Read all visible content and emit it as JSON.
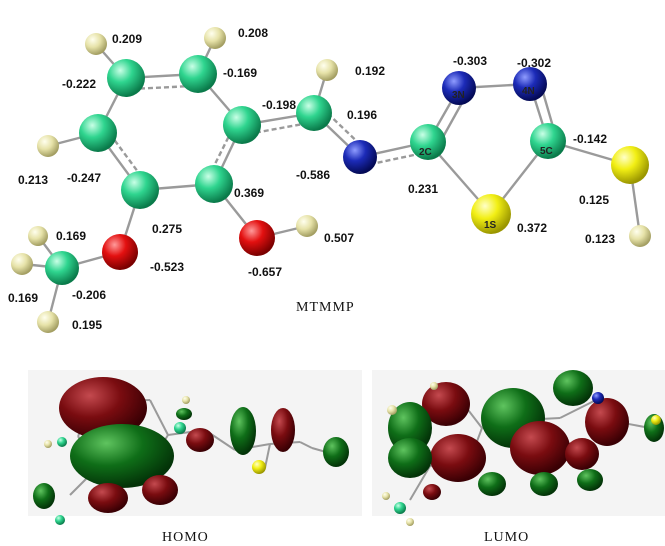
{
  "structure": {
    "caption": "MTMMP",
    "atom_labels": {
      "n3": "3N",
      "n4": "4N",
      "c2": "2C",
      "c5": "5C",
      "s1": "1S"
    },
    "charges": {
      "h_top1": "0.209",
      "h_top2": "0.208",
      "c_ring_tl": "-0.222",
      "c_ring_tr": "-0.169",
      "c_ring_ml": "-0.247",
      "h_left": "0.213",
      "c_ring_bl": "0.275",
      "c_ring_br": "0.369",
      "c_ring_r": "-0.198",
      "h_imine": "0.192",
      "c_imine": "0.196",
      "n_imine": "-0.586",
      "c2": "0.231",
      "n3": "-0.303",
      "n4": "-0.302",
      "c5": "-0.142",
      "s1": "0.372",
      "s_thiol": "0.125",
      "h_thiol": "0.123",
      "o_hydroxyl": "-0.657",
      "h_hydroxyl": "0.507",
      "o_methoxy": "-0.523",
      "c_methyl": "-0.206",
      "h_me1": "0.169",
      "h_me2": "0.169",
      "h_me3": "0.195"
    }
  },
  "orbitals": {
    "homo_label": "HOMO",
    "lumo_label": "LUMO"
  },
  "colors": {
    "carbon": "#2fd58f",
    "hydrogen": "#e6e2a8",
    "nitrogen": "#1c2bb8",
    "oxygen": "#e31010",
    "sulfur": "#f2ef14",
    "lobe_red": "#7a0c10",
    "lobe_green": "#0f6e18"
  }
}
